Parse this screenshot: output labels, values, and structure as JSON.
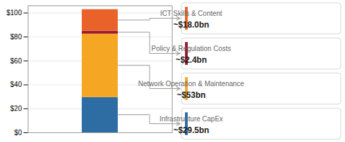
{
  "chart_data": {
    "type": "bar",
    "stacked": true,
    "categories": [
      null
    ],
    "series": [
      {
        "name": "Infrastructure CapEx",
        "color": "#2e6da4",
        "values": [
          29.5
        ],
        "value_labels": [
          "~$29.5bn"
        ]
      },
      {
        "name": "Network Operation & Maintenance",
        "color": "#f5a623",
        "values": [
          53.0
        ],
        "value_labels": [
          "~$53bn"
        ]
      },
      {
        "name": "Policy & Regulation Costs",
        "color": "#9b1a2a",
        "values": [
          2.4
        ],
        "value_labels": [
          "~$2.4bn"
        ]
      },
      {
        "name": "ICT Skills & Content",
        "color": "#e8622a",
        "values": [
          18.0
        ],
        "value_labels": [
          "~$18.0bn"
        ]
      }
    ],
    "ylim": [
      0,
      106
    ],
    "yticks": [
      {
        "value": 0,
        "label": "$0"
      },
      {
        "value": 20,
        "label": "$20"
      },
      {
        "value": 40,
        "label": "$40"
      },
      {
        "value": 60,
        "label": "$60"
      },
      {
        "value": 80,
        "label": "$80"
      },
      {
        "value": 100,
        "label": "$100"
      }
    ],
    "grid": true,
    "data_labels": true,
    "tick_labels": "y"
  }
}
